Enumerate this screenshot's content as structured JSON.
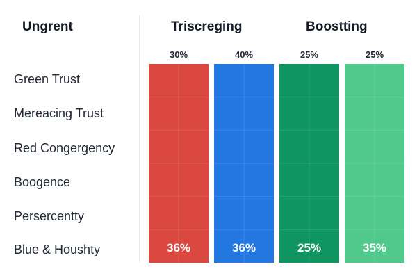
{
  "headers": {
    "left": "Ungrent",
    "middle": "Triscreging",
    "right": "Boostting"
  },
  "chart_data": {
    "type": "table",
    "rows": [
      "Green Trust",
      "Mereacing Trust",
      "Red Congergency",
      "Boogence",
      "Persercentty",
      "Blue & Houshty"
    ],
    "columns": [
      {
        "top_label": "30%",
        "bottom_label": "36%",
        "color": "#d9473f"
      },
      {
        "top_label": "40%",
        "bottom_label": "36%",
        "color": "#2278e0"
      },
      {
        "top_label": "25%",
        "bottom_label": "25%",
        "color": "#0e9560"
      },
      {
        "top_label": "25%",
        "bottom_label": "35%",
        "color": "#52c98c"
      }
    ]
  }
}
